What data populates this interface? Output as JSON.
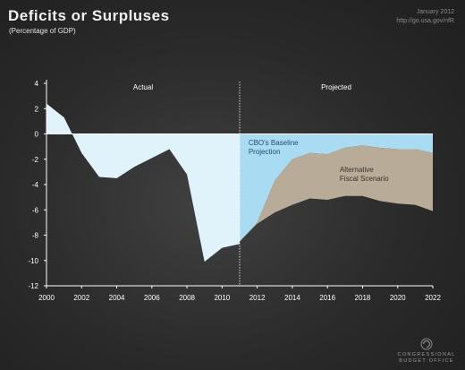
{
  "header": {
    "title": "Deficits or Surpluses",
    "subtitle": "(Percentage of GDP)",
    "date": "January 2012",
    "link": "http://go.usa.gov/nfR"
  },
  "logo": {
    "line1": "Congressional",
    "line2": "Budget Office"
  },
  "chart_data": {
    "type": "area",
    "title": "Deficits or Surpluses",
    "subtitle": "(Percentage of GDP)",
    "xlim": [
      2000,
      2022
    ],
    "ylim": [
      -12,
      4
    ],
    "x_ticks": [
      2000,
      2002,
      2004,
      2006,
      2008,
      2010,
      2012,
      2014,
      2016,
      2018,
      2020,
      2022
    ],
    "y_ticks": [
      4,
      2,
      0,
      -2,
      -4,
      -6,
      -8,
      -10,
      -12
    ],
    "divider_x": 2011,
    "region_labels": {
      "actual": "Actual",
      "projected": "Projected"
    },
    "series": [
      {
        "name": "Actual",
        "color": "#e0f3fb",
        "x": [
          2000,
          2001,
          2002,
          2003,
          2004,
          2005,
          2006,
          2007,
          2008,
          2009,
          2010,
          2011
        ],
        "values": [
          2.4,
          1.3,
          -1.5,
          -3.4,
          -3.5,
          -2.6,
          -1.9,
          -1.2,
          -3.2,
          -10.1,
          -9.0,
          -8.7
        ]
      },
      {
        "name": "CBO's Baseline Projection",
        "color": "#a9dcf3",
        "label_lines": [
          "CBO's Baseline",
          "Projection"
        ],
        "x": [
          2011,
          2012,
          2013,
          2014,
          2015,
          2016,
          2017,
          2018,
          2019,
          2020,
          2021,
          2022
        ],
        "values": [
          -8.5,
          -7.0,
          -3.7,
          -2.0,
          -1.5,
          -1.6,
          -1.1,
          -0.9,
          -1.1,
          -1.2,
          -1.2,
          -1.5
        ]
      },
      {
        "name": "Alternative Fiscal Scenario",
        "color": "#b8ac98",
        "label_lines": [
          "Alternative",
          "Fiscal Scenario"
        ],
        "x": [
          2011,
          2012,
          2013,
          2014,
          2015,
          2016,
          2017,
          2018,
          2019,
          2020,
          2021,
          2022
        ],
        "values": [
          -8.5,
          -7.1,
          -6.2,
          -5.6,
          -5.1,
          -5.2,
          -4.9,
          -4.9,
          -5.3,
          -5.5,
          -5.6,
          -6.1
        ]
      }
    ],
    "colors": {
      "background": "#2b2b2b",
      "zero_line": "#ffffff",
      "text": "#ffffff"
    }
  }
}
